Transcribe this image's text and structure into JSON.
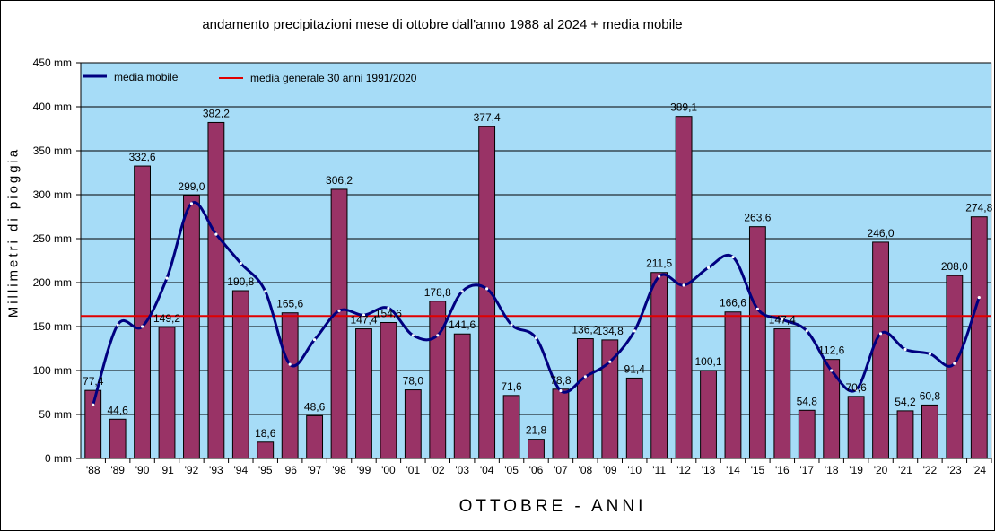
{
  "chart_data": {
    "type": "bar",
    "title": "andamento precipitazioni mese di ottobre dall'anno 1988 al 2024 + media mobile",
    "xlabel": "OTTOBRE - ANNI",
    "ylabel": "Millimetri di pioggia",
    "ylim": [
      0,
      450
    ],
    "yticks": [
      0,
      50,
      100,
      150,
      200,
      250,
      300,
      350,
      400,
      450
    ],
    "ytick_suffix": " mm",
    "categories": [
      "'88",
      "'89",
      "'90",
      "'91",
      "'92",
      "'93",
      "'94",
      "'95",
      "'96",
      "'97",
      "'98",
      "'99",
      "'00",
      "'01",
      "'02",
      "'03",
      "'04",
      "'05",
      "'06",
      "'07",
      "'08",
      "'09",
      "'10",
      "'11",
      "'12",
      "'13",
      "'14",
      "'15",
      "'16",
      "'17",
      "'18",
      "'19",
      "'20",
      "'21",
      "'22",
      "'23",
      "'24"
    ],
    "values": [
      77.4,
      44.6,
      332.6,
      149.2,
      299.0,
      382.2,
      190.8,
      18.6,
      165.6,
      48.6,
      306.2,
      147.4,
      154.6,
      78.0,
      178.8,
      141.6,
      377.4,
      71.6,
      21.8,
      78.8,
      136.2,
      134.8,
      91.4,
      211.5,
      389.1,
      100.1,
      166.6,
      263.6,
      147.4,
      54.8,
      112.6,
      70.6,
      246.0,
      54.2,
      60.8,
      208.0,
      274.8
    ],
    "value_labels": [
      "77,4",
      "44,6",
      "332,6",
      "149,2",
      "299,0",
      "382,2",
      "190,8",
      "18,6",
      "165,6",
      "48,6",
      "306,2",
      "147,4",
      "154,6",
      "78,0",
      "178,8",
      "141,6",
      "377,4",
      "71,6",
      "21,8",
      "78,8",
      "136,2",
      "134,8",
      "91,4",
      "211,5",
      "389,1",
      "100,1",
      "166,6",
      "263,6",
      "147,4",
      "54,8",
      "112,6",
      "70,6",
      "246,0",
      "54,2",
      "60,8",
      "208,0",
      "274,8"
    ],
    "moving_average": [
      61,
      152,
      150,
      205,
      290,
      255,
      222,
      190,
      107,
      135,
      168,
      163,
      171,
      140,
      140,
      190,
      193,
      152,
      137,
      77,
      93,
      110,
      145,
      207,
      197,
      217,
      229,
      170,
      158,
      145,
      100,
      78,
      142,
      124,
      119,
      108,
      183
    ],
    "reference_line": {
      "label": "media generale 30 anni  1991/2020",
      "value": 162
    },
    "legend": [
      {
        "label": "media mobile",
        "color": "#000080"
      },
      {
        "label": "media generale 30 anni  1991/2020",
        "color": "#e00000"
      }
    ],
    "colors": {
      "bar": "#993366",
      "plot_bg": "#a6dcf7",
      "average_line": "#000080",
      "reference_line": "#e00000"
    },
    "grid": true,
    "legend_position": "top-left"
  }
}
